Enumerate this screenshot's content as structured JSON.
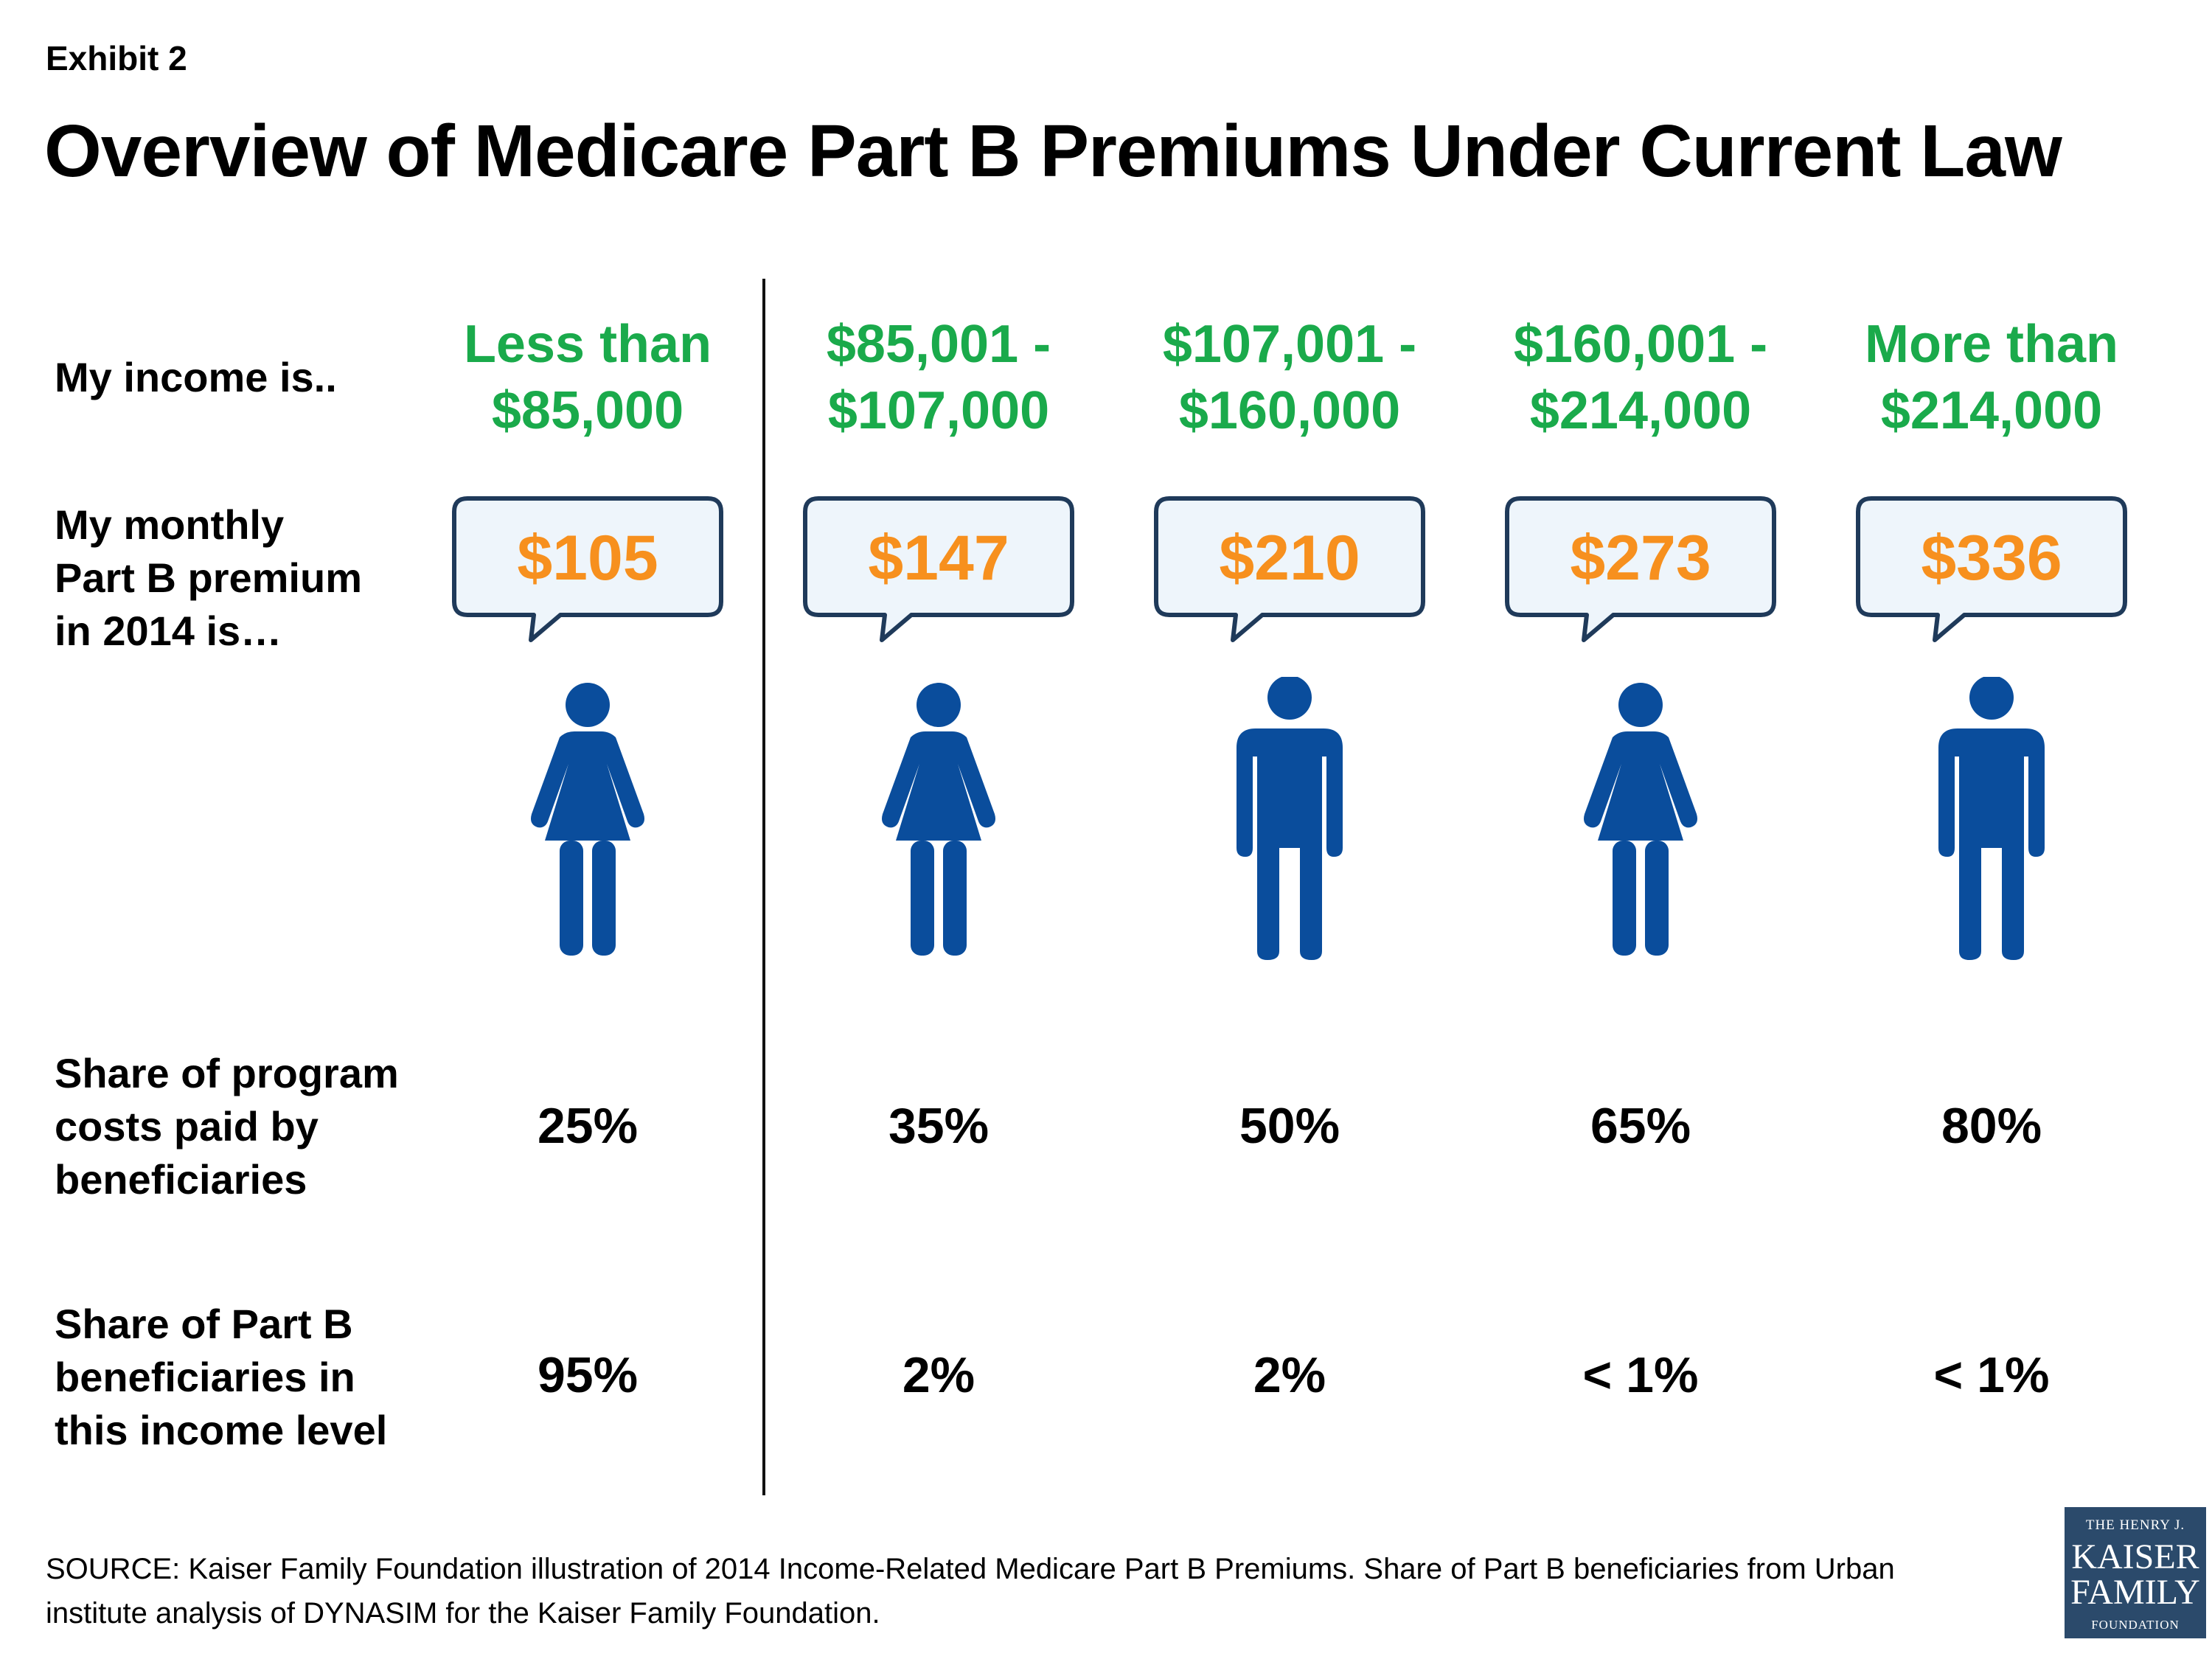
{
  "exhibit": "Exhibit 2",
  "title": "Overview of Medicare Part B Premiums Under Current Law",
  "row_labels": {
    "income": "My income is..",
    "premium": [
      "My monthly",
      "Part B premium",
      "in 2014 is…"
    ],
    "program_costs": [
      "Share of program",
      "costs paid by",
      "beneficiaries"
    ],
    "beneficiaries": [
      "Share of Part B",
      "beneficiaries in",
      "this income level"
    ]
  },
  "columns": [
    {
      "income": [
        "Less than",
        "$85,000"
      ],
      "premium": "$105",
      "figure": "woman-icon",
      "program_cost_share": "25%",
      "beneficiary_share": "95%"
    },
    {
      "income": [
        "$85,001 -",
        "$107,000"
      ],
      "premium": "$147",
      "figure": "woman-icon",
      "program_cost_share": "35%",
      "beneficiary_share": "2%"
    },
    {
      "income": [
        "$107,001 -",
        "$160,000"
      ],
      "premium": "$210",
      "figure": "man-icon",
      "program_cost_share": "50%",
      "beneficiary_share": "2%"
    },
    {
      "income": [
        "$160,001 -",
        "$214,000"
      ],
      "premium": "$273",
      "figure": "woman-icon",
      "program_cost_share": "65%",
      "beneficiary_share": "< 1%"
    },
    {
      "income": [
        "More than",
        "$214,000"
      ],
      "premium": "$336",
      "figure": "man-icon",
      "program_cost_share": "80%",
      "beneficiary_share": "< 1%"
    }
  ],
  "source": "SOURCE: Kaiser Family Foundation illustration of 2014 Income-Related Medicare Part B Premiums. Share of Part B beneficiaries from Urban institute analysis of DYNASIM for the Kaiser Family Foundation.",
  "logo": {
    "line1": "THE HENRY J.",
    "line2": "KAISER",
    "line3": "FAMILY",
    "line4": "FOUNDATION"
  },
  "colors": {
    "income": "#1aaa4b",
    "premium": "#f7901e",
    "figure": "#0a4d9c",
    "bubble_border": "#1f3a5a",
    "bubble_fill": "#eef5fb"
  }
}
